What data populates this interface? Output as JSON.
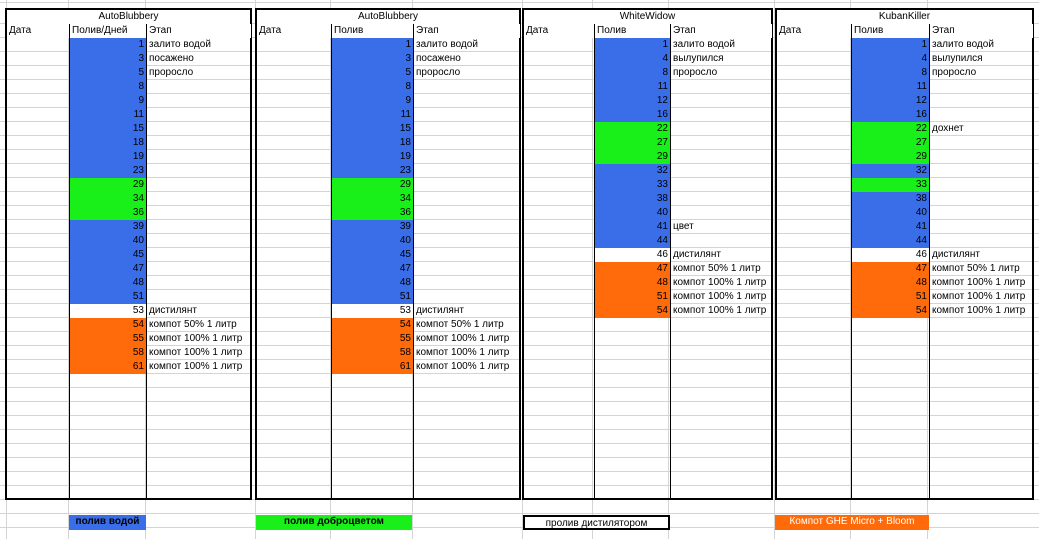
{
  "colors": {
    "water": "#3a6ee8",
    "fertilizer": "#19f019",
    "distillate": "#ffffff",
    "compost": "#ff6a0a"
  },
  "blocks": [
    {
      "title": "AutoBlubbery",
      "headers": {
        "date": "Дата",
        "watering": "Полив/Дней",
        "stage": "Этап"
      },
      "rows": [
        {
          "value": "1",
          "type": "water",
          "stage": "залито водой"
        },
        {
          "value": "3",
          "type": "water",
          "stage": "посажено"
        },
        {
          "value": "5",
          "type": "water",
          "stage": "проросло"
        },
        {
          "value": "8",
          "type": "water",
          "stage": ""
        },
        {
          "value": "9",
          "type": "water",
          "stage": ""
        },
        {
          "value": "11",
          "type": "water",
          "stage": ""
        },
        {
          "value": "15",
          "type": "water",
          "stage": ""
        },
        {
          "value": "18",
          "type": "water",
          "stage": ""
        },
        {
          "value": "19",
          "type": "water",
          "stage": ""
        },
        {
          "value": "23",
          "type": "water",
          "stage": ""
        },
        {
          "value": "29",
          "type": "fertilizer",
          "stage": ""
        },
        {
          "value": "34",
          "type": "fertilizer",
          "stage": ""
        },
        {
          "value": "36",
          "type": "fertilizer",
          "stage": ""
        },
        {
          "value": "39",
          "type": "water",
          "stage": ""
        },
        {
          "value": "40",
          "type": "water",
          "stage": ""
        },
        {
          "value": "45",
          "type": "water",
          "stage": ""
        },
        {
          "value": "47",
          "type": "water",
          "stage": ""
        },
        {
          "value": "48",
          "type": "water",
          "stage": ""
        },
        {
          "value": "51",
          "type": "water",
          "stage": ""
        },
        {
          "value": "53",
          "type": "distillate",
          "stage": "дистилянт"
        },
        {
          "value": "54",
          "type": "compost",
          "stage": "компот 50% 1 литр"
        },
        {
          "value": "55",
          "type": "compost",
          "stage": "компот 100% 1 литр"
        },
        {
          "value": "58",
          "type": "compost",
          "stage": "компот 100% 1 литр"
        },
        {
          "value": "61",
          "type": "compost",
          "stage": "компот 100% 1 литр"
        }
      ]
    },
    {
      "title": "AutoBlubbery",
      "headers": {
        "date": "Дата",
        "watering": "Полив",
        "stage": "Этап"
      },
      "rows": [
        {
          "value": "1",
          "type": "water",
          "stage": "залито водой"
        },
        {
          "value": "3",
          "type": "water",
          "stage": "посажено"
        },
        {
          "value": "5",
          "type": "water",
          "stage": "проросло"
        },
        {
          "value": "8",
          "type": "water",
          "stage": ""
        },
        {
          "value": "9",
          "type": "water",
          "stage": ""
        },
        {
          "value": "11",
          "type": "water",
          "stage": ""
        },
        {
          "value": "15",
          "type": "water",
          "stage": ""
        },
        {
          "value": "18",
          "type": "water",
          "stage": ""
        },
        {
          "value": "19",
          "type": "water",
          "stage": ""
        },
        {
          "value": "23",
          "type": "water",
          "stage": ""
        },
        {
          "value": "29",
          "type": "fertilizer",
          "stage": ""
        },
        {
          "value": "34",
          "type": "fertilizer",
          "stage": ""
        },
        {
          "value": "36",
          "type": "fertilizer",
          "stage": ""
        },
        {
          "value": "39",
          "type": "water",
          "stage": ""
        },
        {
          "value": "40",
          "type": "water",
          "stage": ""
        },
        {
          "value": "45",
          "type": "water",
          "stage": ""
        },
        {
          "value": "47",
          "type": "water",
          "stage": ""
        },
        {
          "value": "48",
          "type": "water",
          "stage": ""
        },
        {
          "value": "51",
          "type": "water",
          "stage": ""
        },
        {
          "value": "53",
          "type": "distillate",
          "stage": "дистилянт"
        },
        {
          "value": "54",
          "type": "compost",
          "stage": "компот 50% 1 литр"
        },
        {
          "value": "55",
          "type": "compost",
          "stage": "компот 100% 1 литр"
        },
        {
          "value": "58",
          "type": "compost",
          "stage": "компот 100% 1 литр"
        },
        {
          "value": "61",
          "type": "compost",
          "stage": "компот 100% 1 литр"
        }
      ]
    },
    {
      "title": "WhiteWidow",
      "headers": {
        "date": "Дата",
        "watering": "Полив",
        "stage": "Этап"
      },
      "rows": [
        {
          "value": "1",
          "type": "water",
          "stage": "залито водой"
        },
        {
          "value": "4",
          "type": "water",
          "stage": "вылупился"
        },
        {
          "value": "8",
          "type": "water",
          "stage": "проросло"
        },
        {
          "value": "11",
          "type": "water",
          "stage": ""
        },
        {
          "value": "12",
          "type": "water",
          "stage": ""
        },
        {
          "value": "16",
          "type": "water",
          "stage": ""
        },
        {
          "value": "22",
          "type": "fertilizer",
          "stage": ""
        },
        {
          "value": "27",
          "type": "fertilizer",
          "stage": ""
        },
        {
          "value": "29",
          "type": "fertilizer",
          "stage": ""
        },
        {
          "value": "32",
          "type": "water",
          "stage": ""
        },
        {
          "value": "33",
          "type": "water",
          "stage": ""
        },
        {
          "value": "38",
          "type": "water",
          "stage": ""
        },
        {
          "value": "40",
          "type": "water",
          "stage": ""
        },
        {
          "value": "41",
          "type": "water",
          "stage": "цвет"
        },
        {
          "value": "44",
          "type": "water",
          "stage": ""
        },
        {
          "value": "46",
          "type": "distillate",
          "stage": "дистилянт"
        },
        {
          "value": "47",
          "type": "compost",
          "stage": "компот 50% 1 литр"
        },
        {
          "value": "48",
          "type": "compost",
          "stage": "компот 100% 1 литр"
        },
        {
          "value": "51",
          "type": "compost",
          "stage": "компот 100% 1 литр"
        },
        {
          "value": "54",
          "type": "compost",
          "stage": "компот 100% 1 литр"
        }
      ]
    },
    {
      "title": "KubanKiller",
      "headers": {
        "date": "Дата",
        "watering": "Полив",
        "stage": "Этап"
      },
      "rows": [
        {
          "value": "1",
          "type": "water",
          "stage": "залито водой"
        },
        {
          "value": "4",
          "type": "water",
          "stage": "вылупился"
        },
        {
          "value": "8",
          "type": "water",
          "stage": "проросло"
        },
        {
          "value": "11",
          "type": "water",
          "stage": ""
        },
        {
          "value": "12",
          "type": "water",
          "stage": ""
        },
        {
          "value": "16",
          "type": "water",
          "stage": ""
        },
        {
          "value": "22",
          "type": "fertilizer",
          "stage": "дохнет"
        },
        {
          "value": "27",
          "type": "fertilizer",
          "stage": ""
        },
        {
          "value": "29",
          "type": "fertilizer",
          "stage": ""
        },
        {
          "value": "32",
          "type": "water",
          "stage": ""
        },
        {
          "value": "33",
          "type": "fertilizer",
          "stage": ""
        },
        {
          "value": "38",
          "type": "water",
          "stage": ""
        },
        {
          "value": "40",
          "type": "water",
          "stage": ""
        },
        {
          "value": "41",
          "type": "water",
          "stage": ""
        },
        {
          "value": "44",
          "type": "water",
          "stage": ""
        },
        {
          "value": "46",
          "type": "distillate",
          "stage": "дистилянт"
        },
        {
          "value": "47",
          "type": "compost",
          "stage": "компот 50% 1 литр"
        },
        {
          "value": "48",
          "type": "compost",
          "stage": "компот 100% 1 литр"
        },
        {
          "value": "51",
          "type": "compost",
          "stage": "компот 100% 1 литр"
        },
        {
          "value": "54",
          "type": "compost",
          "stage": "компот 100% 1 литр"
        }
      ]
    }
  ],
  "legend": [
    {
      "label": "полив водой",
      "type": "water"
    },
    {
      "label": "полив доброцветом",
      "type": "fertilizer"
    },
    {
      "label": "пролив дистилятором",
      "type": "distillate"
    },
    {
      "label": "Компот GHE Micro + Bloom",
      "type": "compost"
    }
  ]
}
